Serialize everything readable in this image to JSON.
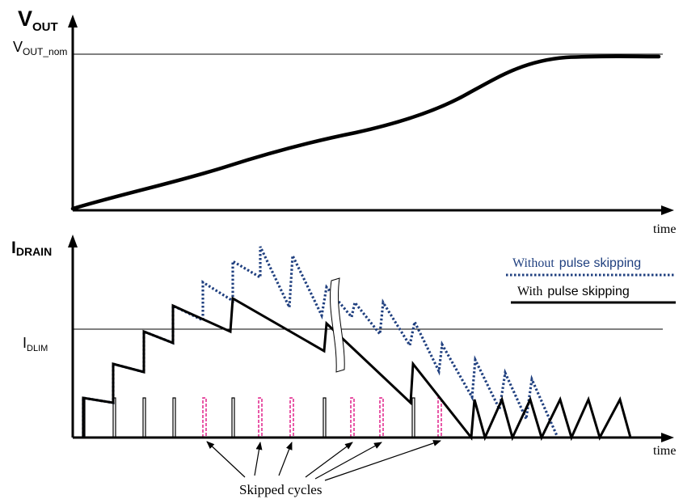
{
  "top_panel": {
    "axis_symbol": "V",
    "axis_subscript": "OUT",
    "level_symbol": "V",
    "level_subscript": "OUT_nom",
    "x_label": "time"
  },
  "bottom_panel": {
    "axis_symbol": "I",
    "axis_subscript": "DRAIN",
    "limit_symbol": "I",
    "limit_subscript": "DLIM",
    "x_label": "time"
  },
  "legend": {
    "without_prefix": "Without",
    "without_suffix": "pulse skipping",
    "with_prefix": "With",
    "with_suffix": "pulse skipping",
    "colors": {
      "without": "#1f3f7f",
      "with": "#000000"
    }
  },
  "annotation": {
    "skipped_label": "Skipped cycles",
    "skipped_color": "#e0208a"
  }
}
